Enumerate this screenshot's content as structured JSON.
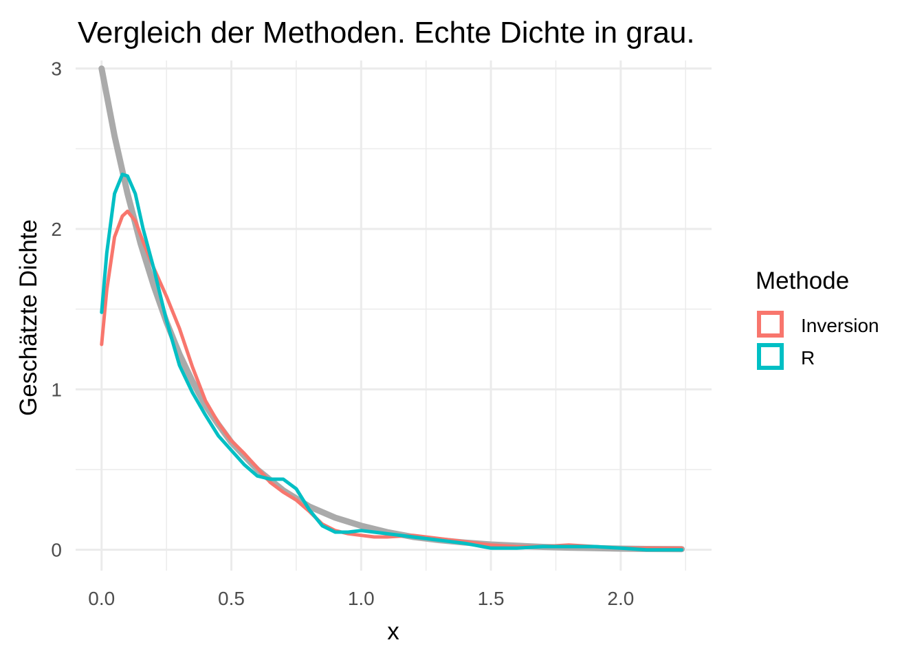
{
  "chart_data": {
    "type": "line",
    "title": "Vergleich der Methoden. Echte Dichte in grau.",
    "xlabel": "x",
    "ylabel": "Geschätzte Dichte",
    "xlim": [
      -0.1,
      2.35
    ],
    "ylim": [
      -0.13,
      3.05
    ],
    "x_ticks": [
      0.0,
      0.5,
      1.0,
      1.5,
      2.0
    ],
    "x_tick_labels": [
      "0.0",
      "0.5",
      "1.0",
      "1.5",
      "2.0"
    ],
    "y_ticks": [
      0,
      1,
      2,
      3
    ],
    "y_tick_labels": [
      "0",
      "1",
      "2",
      "3"
    ],
    "grid": true,
    "legend": {
      "title": "Methode",
      "placement": "right",
      "entries": [
        {
          "label": "Inversion",
          "color": "#F8766D"
        },
        {
          "label": "R",
          "color": "#00BFC4"
        }
      ]
    },
    "reference_curve": {
      "color": "#AAAAAA",
      "points": [
        [
          0.0,
          3.0
        ],
        [
          0.05,
          2.58
        ],
        [
          0.1,
          2.22
        ],
        [
          0.15,
          1.91
        ],
        [
          0.2,
          1.65
        ],
        [
          0.25,
          1.42
        ],
        [
          0.3,
          1.22
        ],
        [
          0.35,
          1.05
        ],
        [
          0.4,
          0.9
        ],
        [
          0.45,
          0.78
        ],
        [
          0.5,
          0.67
        ],
        [
          0.6,
          0.5
        ],
        [
          0.7,
          0.37
        ],
        [
          0.8,
          0.27
        ],
        [
          0.9,
          0.2
        ],
        [
          1.0,
          0.15
        ],
        [
          1.1,
          0.11
        ],
        [
          1.2,
          0.08
        ],
        [
          1.3,
          0.06
        ],
        [
          1.4,
          0.045
        ],
        [
          1.5,
          0.033
        ],
        [
          1.6,
          0.025
        ],
        [
          1.7,
          0.018
        ],
        [
          1.8,
          0.013
        ],
        [
          1.9,
          0.01
        ],
        [
          2.0,
          0.007
        ],
        [
          2.1,
          0.005
        ],
        [
          2.235,
          0.004
        ]
      ]
    },
    "series": [
      {
        "name": "Inversion",
        "color": "#F8766D",
        "points": [
          [
            0.0,
            1.28
          ],
          [
            0.02,
            1.62
          ],
          [
            0.05,
            1.95
          ],
          [
            0.08,
            2.08
          ],
          [
            0.1,
            2.11
          ],
          [
            0.13,
            2.05
          ],
          [
            0.16,
            1.92
          ],
          [
            0.2,
            1.76
          ],
          [
            0.25,
            1.58
          ],
          [
            0.3,
            1.38
          ],
          [
            0.35,
            1.14
          ],
          [
            0.4,
            0.93
          ],
          [
            0.45,
            0.79
          ],
          [
            0.5,
            0.68
          ],
          [
            0.55,
            0.6
          ],
          [
            0.6,
            0.51
          ],
          [
            0.65,
            0.42
          ],
          [
            0.7,
            0.36
          ],
          [
            0.75,
            0.31
          ],
          [
            0.8,
            0.24
          ],
          [
            0.85,
            0.16
          ],
          [
            0.9,
            0.12
          ],
          [
            0.95,
            0.1
          ],
          [
            1.0,
            0.09
          ],
          [
            1.05,
            0.08
          ],
          [
            1.1,
            0.08
          ],
          [
            1.2,
            0.09
          ],
          [
            1.3,
            0.07
          ],
          [
            1.4,
            0.05
          ],
          [
            1.5,
            0.03
          ],
          [
            1.6,
            0.02
          ],
          [
            1.7,
            0.02
          ],
          [
            1.8,
            0.03
          ],
          [
            1.9,
            0.02
          ],
          [
            2.0,
            0.01
          ],
          [
            2.1,
            0.01
          ],
          [
            2.235,
            0.01
          ]
        ]
      },
      {
        "name": "R",
        "color": "#00BFC4",
        "points": [
          [
            0.0,
            1.48
          ],
          [
            0.02,
            1.85
          ],
          [
            0.05,
            2.22
          ],
          [
            0.08,
            2.34
          ],
          [
            0.1,
            2.33
          ],
          [
            0.13,
            2.22
          ],
          [
            0.16,
            2.0
          ],
          [
            0.2,
            1.76
          ],
          [
            0.25,
            1.43
          ],
          [
            0.3,
            1.15
          ],
          [
            0.35,
            0.98
          ],
          [
            0.4,
            0.84
          ],
          [
            0.45,
            0.71
          ],
          [
            0.5,
            0.62
          ],
          [
            0.55,
            0.53
          ],
          [
            0.6,
            0.46
          ],
          [
            0.65,
            0.44
          ],
          [
            0.7,
            0.44
          ],
          [
            0.75,
            0.38
          ],
          [
            0.8,
            0.25
          ],
          [
            0.85,
            0.15
          ],
          [
            0.9,
            0.11
          ],
          [
            0.95,
            0.11
          ],
          [
            1.0,
            0.12
          ],
          [
            1.05,
            0.11
          ],
          [
            1.1,
            0.1
          ],
          [
            1.2,
            0.08
          ],
          [
            1.3,
            0.06
          ],
          [
            1.4,
            0.04
          ],
          [
            1.5,
            0.01
          ],
          [
            1.6,
            0.01
          ],
          [
            1.7,
            0.02
          ],
          [
            1.8,
            0.02
          ],
          [
            1.9,
            0.02
          ],
          [
            2.0,
            0.01
          ],
          [
            2.1,
            0.0
          ],
          [
            2.235,
            0.0
          ]
        ]
      }
    ]
  }
}
